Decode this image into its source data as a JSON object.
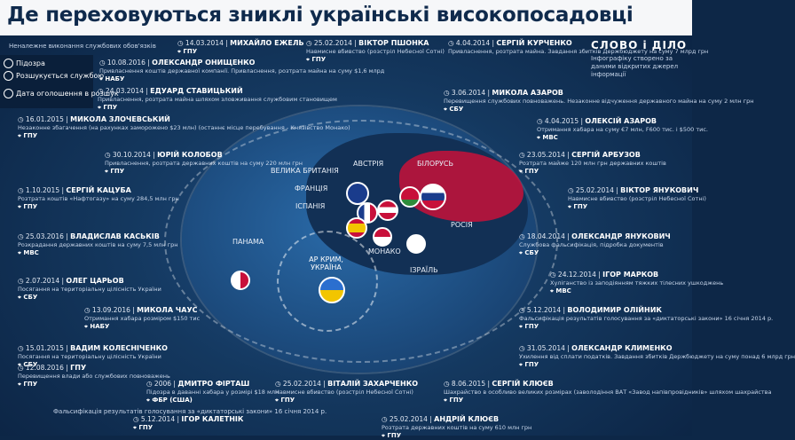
{
  "title": "Де переховуються зниклі українські високопосадовці",
  "logo": {
    "name": "СЛОВО і ДІЛО",
    "subtitle": "Інфографіку створено за даними відкритих джерел інформації"
  },
  "legend": {
    "items": [
      {
        "label": "Підозра",
        "icon": "eye-icon"
      },
      {
        "label": "Розшукується службою",
        "icon": "crosshair-icon"
      },
      {
        "label": "Дата оголошення в розшук",
        "icon": "clock-icon"
      }
    ]
  },
  "top_line": "Неналежне виконання  службових обов'язків",
  "map_labels": {
    "uk": "ВЕЛИКА БРИТАНІЯ",
    "austria": "АВСТРІЯ",
    "belarus": "БІЛОРУСЬ",
    "france": "ФРАНЦІЯ",
    "spain": "ІСПАНІЯ",
    "russia": "РОСІЯ",
    "panama": "ПАНАМА",
    "monaco": "МОНАКО",
    "israel": "ІЗРАЇЛЬ",
    "crimea": "АР КРИМ, УКРАЇНА"
  },
  "people": [
    {
      "name": "МИХАЙЛО ЕЖЕЛЬ",
      "date": "14.03.2014",
      "org": "ГПУ",
      "desc": ""
    },
    {
      "name": "ВІКТОР ПШОНКА",
      "date": "25.02.2014",
      "org": "ГПУ",
      "desc": "Навмисне вбивство (розстріл Небесної Сотні)"
    },
    {
      "name": "СЕРГІЙ КУРЧЕНКО",
      "date": "4.04.2014",
      "org": "",
      "desc": "Привласнення, розтрата майна. Завдання збитків Держбюджету на суму 7 млрд грн"
    },
    {
      "name": "ОЛЕКСАНДР ОНИЩЕНКО",
      "date": "10.08.2016",
      "org": "НАБУ",
      "desc": "Привласнення коштів державної компанії. Привласнення, розтрата майна на суму $1,6 млрд"
    },
    {
      "name": "ЕДУАРД СТАВИЦЬКИЙ",
      "date": "24.03.2014",
      "org": "ГПУ",
      "desc": "Привласнення, розтрата майна шляхом зловживання службовим становищем"
    },
    {
      "name": "МИКОЛА АЗАРОВ",
      "date": "3.06.2014",
      "org": "СБУ",
      "desc": "Перевищення службових повноважень. Незаконне відчуження державного майна на суму 2 млн грн"
    },
    {
      "name": "МИКОЛА ЗЛОЧЕВСЬКИЙ",
      "date": "16.01.2015",
      "org": "ГПУ",
      "desc": "Незаконне збагачення (на рахунках заморожено $23 млн) (останнє місце перебування - Князівство Монако)"
    },
    {
      "name": "ОЛЕКСІЙ АЗАРОВ",
      "date": "4.04.2015",
      "org": "МВС",
      "desc": "Отримання хабара на суму €7 млн, F600 тис. і $500 тис."
    },
    {
      "name": "ЮРІЙ КОЛОБОВ",
      "date": "30.10.2014",
      "org": "ГПУ",
      "desc": "Привласнення, розтрата державних коштів на суму 220 млн грн"
    },
    {
      "name": "СЕРГІЙ АРБУЗОВ",
      "date": "23.05.2014",
      "org": "ГПУ",
      "desc": "Розтрата майже 120 млн грн державних коштів"
    },
    {
      "name": "СЕРГІЙ КАЦУБА",
      "date": "1.10.2015",
      "org": "ГПУ",
      "desc": "Розтрата коштів «Нафтогазу» на суму 284,5 млн грн"
    },
    {
      "name": "ВІКТОР ЯНУКОВИЧ",
      "date": "25.02.2014",
      "org": "ГПУ",
      "desc": "Навмисне вбивство (розстріл Небесної Сотні)"
    },
    {
      "name": "ВЛАДИСЛАВ КАСЬКІВ",
      "date": "25.03.2016",
      "org": "МВС",
      "desc": "Розкрадання державних коштів на суму 7,5 млн грн"
    },
    {
      "name": "ОЛЕКСАНДР ЯНУКОВИЧ",
      "date": "18.04.2014",
      "org": "СБУ",
      "desc": "Службова фальсифікація, підробка документів"
    },
    {
      "name": "ОЛЕГ ЦАРЬОВ",
      "date": "2.07.2014",
      "org": "СБУ",
      "desc": "Посягання на територіальну цілісність України"
    },
    {
      "name": "ІГОР МАРКОВ",
      "date": "24.12.2014",
      "org": "МВС",
      "desc": "Хуліганство із заподіянням тяжких тілесних ушкоджень"
    },
    {
      "name": "МИКОЛА ЧАУС",
      "date": "13.09.2016",
      "org": "НАБУ",
      "desc": "Отримання хабара розміром $150 тис"
    },
    {
      "name": "ВОЛОДИМИР ОЛІЙНИК",
      "date": "5.12.2014",
      "org": "ГПУ",
      "desc": "Фальсифікація результатів голосування за «диктаторські закони» 16 січня 2014 р."
    },
    {
      "name": "ВАДИМ КОЛЕСНІЧЕНКО",
      "date": "15.01.2015",
      "org": "СБУ",
      "desc": "Посягання на територіальну цілісність України"
    },
    {
      "name": "ОЛЕКСАНДР КЛИМЕНКО",
      "date": "31.05.2014",
      "org": "ГПУ",
      "desc": "Ухилення від сплати податків. Завдання збитків Держбюджету на суму понад 6 млрд грн"
    },
    {
      "name": "ГПУ",
      "date": "12.08.2016",
      "org": "ГПУ",
      "desc": "Перевищення влади або службових повноважень"
    },
    {
      "name": "ДМИТРО ФІРТАШ",
      "date": "2006",
      "org": "ФБР (США)",
      "desc": "Підозра в даванні хабара у розмірі $18 млн"
    },
    {
      "name": "ВІТАЛІЙ ЗАХАРЧЕНКО",
      "date": "25.02.2014",
      "org": "ГПУ",
      "desc": "Навмисне вбивство (розстріл Небесної Сотні)"
    },
    {
      "name": "СЕРГІЙ КЛЮЄВ",
      "date": "8.06.2015",
      "org": "ГПУ",
      "desc": "Шахрайство в особливо великих розмірах (заволодіння ВАТ «Завод напівпровідників» шляхом шахрайства"
    },
    {
      "name": "ІГОР КАЛЕТНІК",
      "date": "5.12.2014",
      "org": "ГПУ",
      "desc": ""
    },
    {
      "name": "АНДРІЙ КЛЮЄВ",
      "date": "25.02.2014",
      "org": "ГПУ",
      "desc": "Розтрата державних коштів на суму 610 млн грн"
    }
  ],
  "bottom_left": "Фальсифікація результатів голосування за «диктаторські закони» 16 січня 2014 р.",
  "colors": {
    "background": "#14385f",
    "russia": "#c8103a",
    "titlebar": "#f6f7f9"
  }
}
